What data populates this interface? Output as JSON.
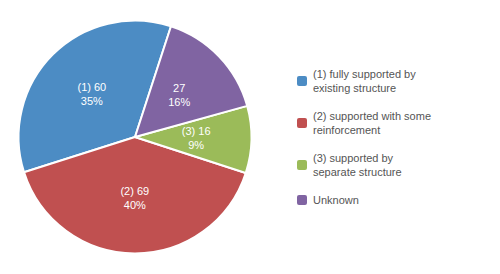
{
  "chart_data": {
    "type": "pie",
    "categories": [
      "(1) fully supported by\nexisting structure",
      "(2) supported with some\nreinforcement",
      "(3) supported by\nseparate structure",
      "Unknown"
    ],
    "values": [
      60,
      69,
      16,
      27
    ],
    "value_labels": [
      "(1) 60\n35%",
      "(2) 69\n40%",
      "(3) 16\n9%",
      "27\n16%"
    ],
    "colors": [
      "#4C8CC4",
      "#C05050",
      "#9BBB59",
      "#8064A2"
    ],
    "data_labels": true,
    "legend": "right"
  }
}
